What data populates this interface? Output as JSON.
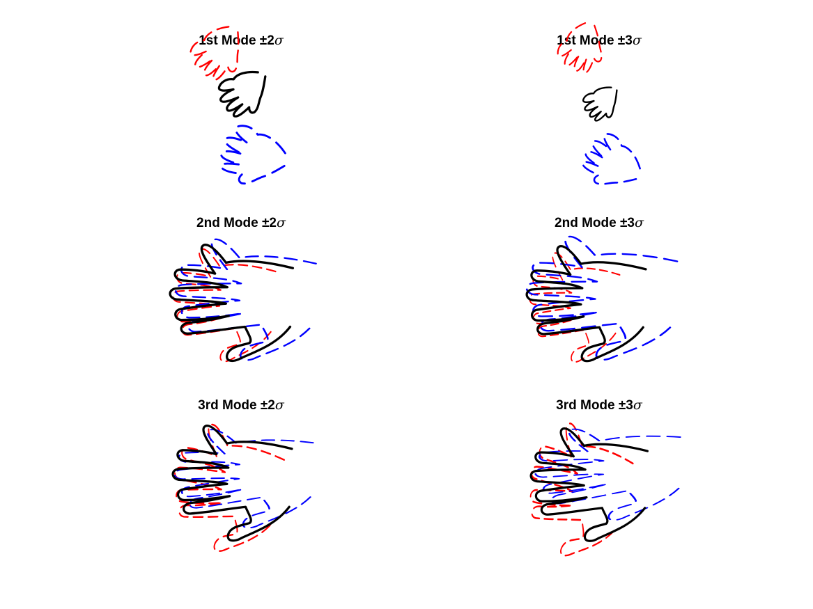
{
  "figure": {
    "panels": [
      {
        "id": "mode1-2s",
        "title_prefix": "1st Mode ±2",
        "title_symbol": "σ"
      },
      {
        "id": "mode1-3s",
        "title_prefix": "1st Mode ±3",
        "title_symbol": "σ"
      },
      {
        "id": "mode2-2s",
        "title_prefix": "2nd Mode ±2",
        "title_symbol": "σ"
      },
      {
        "id": "mode2-3s",
        "title_prefix": "2nd Mode ±3",
        "title_symbol": "σ"
      },
      {
        "id": "mode3-2s",
        "title_prefix": "3rd Mode ±2",
        "title_symbol": "σ"
      },
      {
        "id": "mode3-3s",
        "title_prefix": "3rd Mode ±3",
        "title_symbol": "σ"
      }
    ],
    "colors": {
      "mean": "#000000",
      "plus": "#ff0000",
      "minus": "#0000ff",
      "background": "#ffffff"
    }
  }
}
